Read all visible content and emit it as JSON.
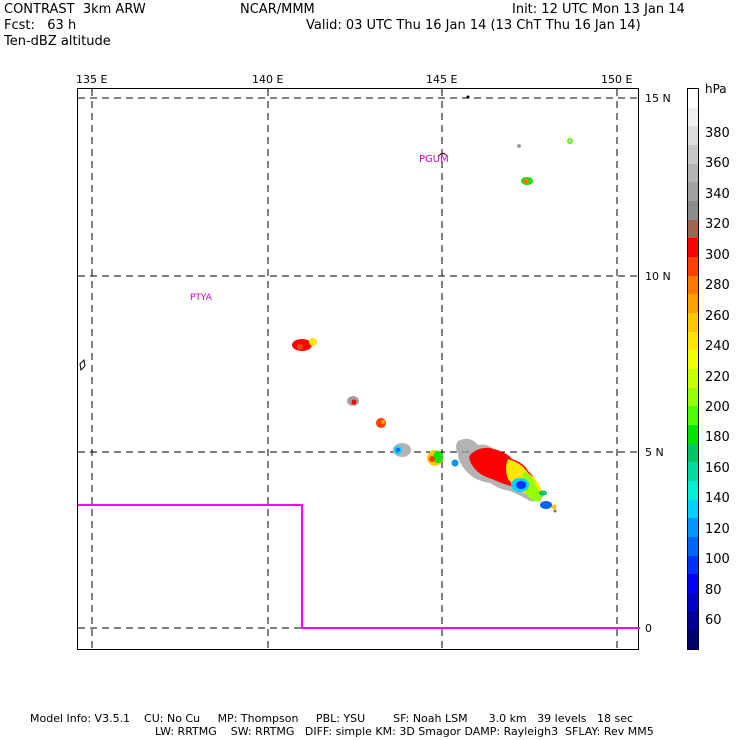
{
  "header": {
    "model": "CONTRAST  3km ARW",
    "org": "NCAR/MMM",
    "init": "Init: 12 UTC Mon 13 Jan 14",
    "fcst": "Fcst:   63 h",
    "valid": "Valid: 03 UTC Thu 16 Jan 14 (13 ChT Thu 16 Jan 14)",
    "field": "Ten-dBZ altitude"
  },
  "map": {
    "lon_labels": [
      "135 E",
      "140 E",
      "145 E",
      "150 E"
    ],
    "lat_labels": [
      "15 N",
      "10 N",
      "5 N",
      "0"
    ],
    "stations": [
      "PGUM",
      "PTYA"
    ],
    "boundary_color": "#ff00ff"
  },
  "colorbar": {
    "unit": "hPa",
    "labels": [
      "380",
      "360",
      "340",
      "320",
      "300",
      "280",
      "260",
      "240",
      "220",
      "200",
      "180",
      "160",
      "140",
      "120",
      "100",
      "80",
      "60"
    ],
    "colors": [
      "#ffffff",
      "#f0f0f0",
      "#dcdcdc",
      "#c8c8c8",
      "#b4b4b4",
      "#a0a0a0",
      "#8c8c8c",
      "#a06450",
      "#ff0000",
      "#ff4000",
      "#ff7800",
      "#ffa000",
      "#ffc800",
      "#ffe600",
      "#f0ff00",
      "#c8ff00",
      "#96ff00",
      "#50ff00",
      "#00e600",
      "#00c864",
      "#00dca0",
      "#00f0d2",
      "#00d2ff",
      "#0096ff",
      "#0064ff",
      "#0032ff",
      "#0000ff",
      "#0000c8",
      "#000096",
      "#00006e"
    ]
  },
  "footer": {
    "line1": "Model Info: V3.5.1    CU: No Cu     MP: Thompson     PBL: YSU        SF: Noah LSM      3.0 km   39 levels   18 sec",
    "line2": "LW: RRTMG    SW: RRTMG   DIFF: simple KM: 3D Smagor DAMP: Rayleigh3  SFLAY: Rev MM5"
  }
}
